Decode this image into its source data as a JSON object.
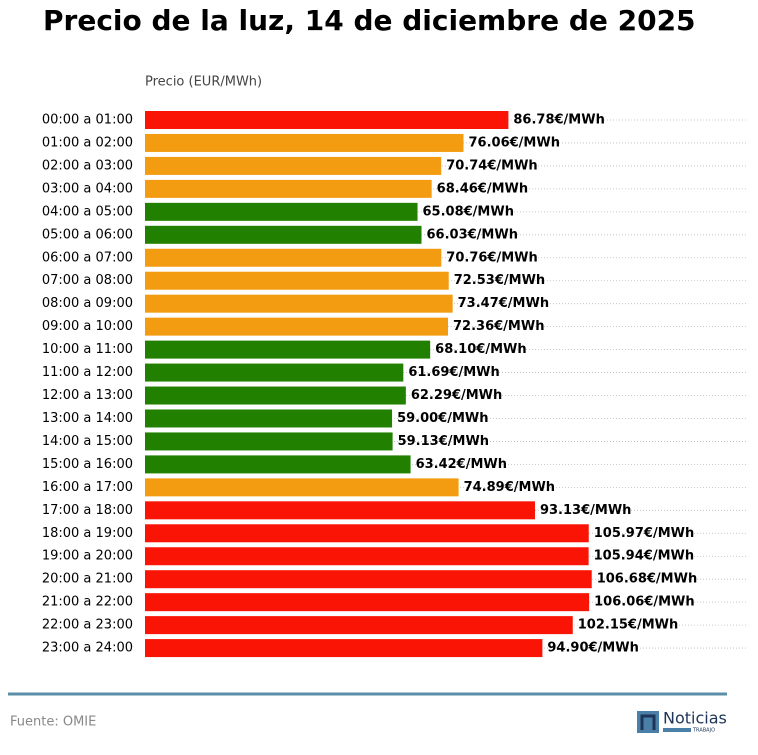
{
  "chart_data": {
    "type": "barh",
    "title": "Precio de la luz, 14 de diciembre de 2025",
    "xlabel": "Precio (EUR/MWh)",
    "categories": [
      "00:00 a 01:00",
      "01:00 a 02:00",
      "02:00 a 03:00",
      "03:00 a 04:00",
      "04:00 a 05:00",
      "05:00 a 06:00",
      "06:00 a 07:00",
      "07:00 a 08:00",
      "08:00 a 09:00",
      "09:00 a 10:00",
      "10:00 a 11:00",
      "11:00 a 12:00",
      "12:00 a 13:00",
      "13:00 a 14:00",
      "14:00 a 15:00",
      "15:00 a 16:00",
      "16:00 a 17:00",
      "17:00 a 18:00",
      "18:00 a 19:00",
      "19:00 a 20:00",
      "20:00 a 21:00",
      "21:00 a 22:00",
      "22:00 a 23:00",
      "23:00 a 24:00"
    ],
    "values": [
      86.78,
      76.06,
      70.74,
      68.46,
      65.08,
      66.03,
      70.76,
      72.53,
      73.47,
      72.36,
      68.1,
      61.69,
      62.29,
      59.0,
      59.13,
      63.42,
      74.89,
      93.13,
      105.97,
      105.94,
      106.68,
      106.06,
      102.15,
      94.9
    ],
    "value_labels": [
      "86.78€/MWh",
      "76.06€/MWh",
      "70.74€/MWh",
      "68.46€/MWh",
      "65.08€/MWh",
      "66.03€/MWh",
      "70.76€/MWh",
      "72.53€/MWh",
      "73.47€/MWh",
      "72.36€/MWh",
      "68.10€/MWh",
      "61.69€/MWh",
      "62.29€/MWh",
      "59.00€/MWh",
      "59.13€/MWh",
      "63.42€/MWh",
      "74.89€/MWh",
      "93.13€/MWh",
      "105.97€/MWh",
      "105.94€/MWh",
      "106.68€/MWh",
      "106.06€/MWh",
      "102.15€/MWh",
      "94.90€/MWh"
    ],
    "colors": [
      "#f91405",
      "#f39c12",
      "#f39c12",
      "#f39c12",
      "#228000",
      "#228000",
      "#f39c12",
      "#f39c12",
      "#f39c12",
      "#f39c12",
      "#228000",
      "#228000",
      "#228000",
      "#228000",
      "#228000",
      "#228000",
      "#f39c12",
      "#f91405",
      "#f91405",
      "#f91405",
      "#f91405",
      "#f91405",
      "#f91405",
      "#f91405"
    ],
    "xlim": [
      0,
      144
    ],
    "grid": true
  },
  "footer": {
    "source": "Fuente: OMIE",
    "logo": "Noticias",
    "logo_sub": "TRABAJO"
  }
}
